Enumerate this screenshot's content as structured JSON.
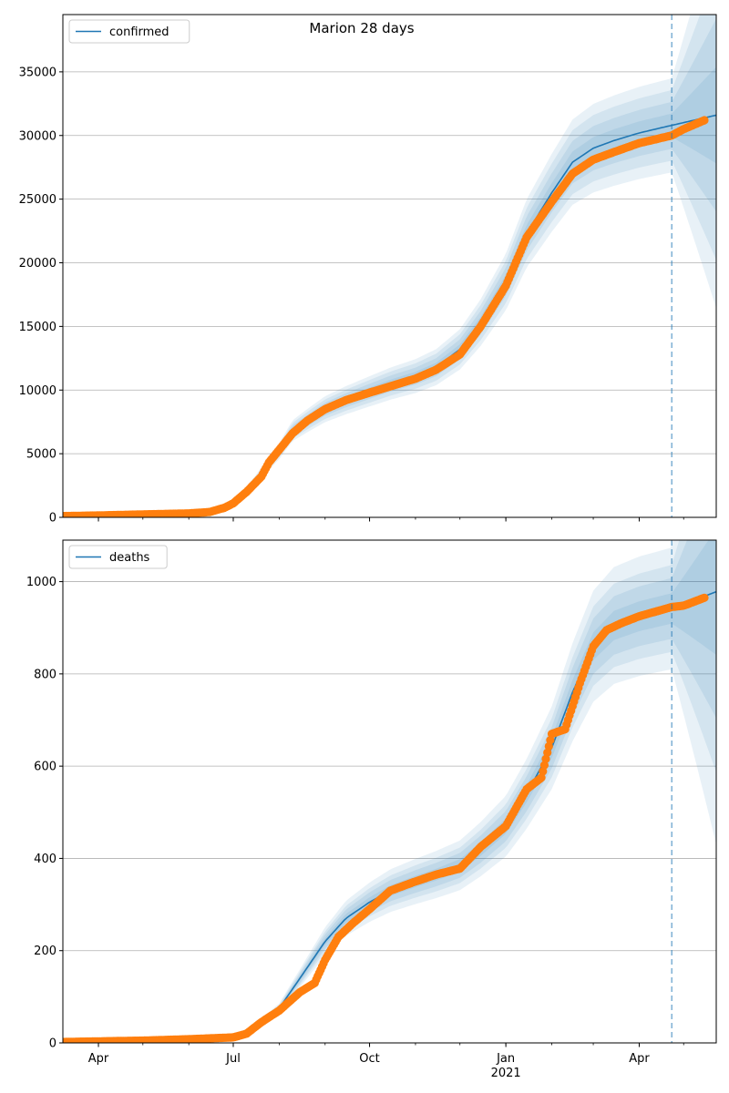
{
  "figure": {
    "title": "Marion 28 days",
    "band_color": "#1f77b4",
    "line_color": "#1f77b4",
    "dot_color": "#ff7f0e",
    "forecast_date": "2021-04-23"
  },
  "chart_data": [
    {
      "type": "line",
      "legend": "confirmed",
      "legend_position": "upper-left",
      "grid": "y",
      "xlim": [
        "2020-03-08",
        "2021-05-23"
      ],
      "ylim": [
        0,
        39500
      ],
      "yticks": [
        0,
        5000,
        10000,
        15000,
        20000,
        25000,
        30000,
        35000
      ],
      "xticks": [
        {
          "date": "2020-04-01",
          "label": "Apr",
          "sub": ""
        },
        {
          "date": "2020-07-01",
          "label": "Jul",
          "sub": ""
        },
        {
          "date": "2020-10-01",
          "label": "Oct",
          "sub": ""
        },
        {
          "date": "2021-01-01",
          "label": "Jan",
          "sub": "2021"
        },
        {
          "date": "2021-04-01",
          "label": "Apr",
          "sub": ""
        }
      ],
      "model": [
        [
          "2020-03-08",
          100
        ],
        [
          "2020-06-01",
          300
        ],
        [
          "2020-06-15",
          500
        ],
        [
          "2020-07-01",
          1100
        ],
        [
          "2020-07-15",
          2800
        ],
        [
          "2020-08-01",
          5200
        ],
        [
          "2020-08-10",
          6800
        ],
        [
          "2020-08-20",
          7600
        ],
        [
          "2020-09-01",
          8500
        ],
        [
          "2020-09-15",
          9200
        ],
        [
          "2020-10-01",
          9900
        ],
        [
          "2020-10-15",
          10500
        ],
        [
          "2020-11-01",
          11100
        ],
        [
          "2020-11-15",
          11800
        ],
        [
          "2020-12-01",
          13200
        ],
        [
          "2020-12-15",
          15300
        ],
        [
          "2021-01-01",
          18500
        ],
        [
          "2021-01-15",
          22300
        ],
        [
          "2021-02-01",
          25500
        ],
        [
          "2021-02-15",
          27900
        ],
        [
          "2021-03-01",
          29000
        ],
        [
          "2021-03-15",
          29600
        ],
        [
          "2021-04-01",
          30200
        ],
        [
          "2021-04-23",
          30800
        ],
        [
          "2021-05-23",
          31600
        ]
      ],
      "band_widths": [
        0.03,
        0.06,
        0.09,
        0.12
      ],
      "observed": [
        [
          "2020-03-08",
          100
        ],
        [
          "2020-04-01",
          150
        ],
        [
          "2020-05-01",
          230
        ],
        [
          "2020-06-01",
          310
        ],
        [
          "2020-06-15",
          420
        ],
        [
          "2020-06-25",
          750
        ],
        [
          "2020-07-01",
          1100
        ],
        [
          "2020-07-10",
          2000
        ],
        [
          "2020-07-20",
          3200
        ],
        [
          "2020-07-25",
          4300
        ],
        [
          "2020-08-01",
          5300
        ],
        [
          "2020-08-10",
          6600
        ],
        [
          "2020-08-20",
          7600
        ],
        [
          "2020-09-01",
          8500
        ],
        [
          "2020-09-15",
          9200
        ],
        [
          "2020-10-01",
          9800
        ],
        [
          "2020-10-15",
          10300
        ],
        [
          "2020-11-01",
          10900
        ],
        [
          "2020-11-15",
          11600
        ],
        [
          "2020-12-01",
          12800
        ],
        [
          "2020-12-15",
          15000
        ],
        [
          "2021-01-01",
          18200
        ],
        [
          "2021-01-15",
          22000
        ],
        [
          "2021-02-01",
          24800
        ],
        [
          "2021-02-15",
          27000
        ],
        [
          "2021-03-01",
          28100
        ],
        [
          "2021-03-15",
          28700
        ],
        [
          "2021-04-01",
          29400
        ],
        [
          "2021-04-23",
          30000
        ],
        [
          "2021-05-01",
          30500
        ],
        [
          "2021-05-15",
          31200
        ]
      ]
    },
    {
      "type": "line",
      "legend": "deaths",
      "legend_position": "upper-left",
      "grid": "y",
      "xlim": [
        "2020-03-08",
        "2021-05-23"
      ],
      "ylim": [
        0,
        1090
      ],
      "yticks": [
        0,
        200,
        400,
        600,
        800,
        1000
      ],
      "xticks": [
        {
          "date": "2020-04-01",
          "label": "Apr",
          "sub": ""
        },
        {
          "date": "2020-07-01",
          "label": "Jul",
          "sub": ""
        },
        {
          "date": "2020-10-01",
          "label": "Oct",
          "sub": ""
        },
        {
          "date": "2021-01-01",
          "label": "Jan",
          "sub": "2021"
        },
        {
          "date": "2021-04-01",
          "label": "Apr",
          "sub": ""
        }
      ],
      "model": [
        [
          "2020-03-08",
          2
        ],
        [
          "2020-06-01",
          8
        ],
        [
          "2020-07-01",
          14
        ],
        [
          "2020-07-15",
          35
        ],
        [
          "2020-08-01",
          75
        ],
        [
          "2020-08-15",
          140
        ],
        [
          "2020-09-01",
          220
        ],
        [
          "2020-09-15",
          270
        ],
        [
          "2020-10-01",
          305
        ],
        [
          "2020-10-15",
          330
        ],
        [
          "2020-11-01",
          350
        ],
        [
          "2020-11-15",
          365
        ],
        [
          "2020-12-01",
          385
        ],
        [
          "2020-12-15",
          420
        ],
        [
          "2021-01-01",
          470
        ],
        [
          "2021-01-15",
          540
        ],
        [
          "2021-02-01",
          640
        ],
        [
          "2021-02-15",
          760
        ],
        [
          "2021-03-01",
          860
        ],
        [
          "2021-03-15",
          905
        ],
        [
          "2021-04-01",
          925
        ],
        [
          "2021-04-23",
          942
        ],
        [
          "2021-05-23",
          978
        ]
      ],
      "band_widths": [
        0.035,
        0.07,
        0.1,
        0.14
      ],
      "observed": [
        [
          "2020-03-08",
          2
        ],
        [
          "2020-05-01",
          5
        ],
        [
          "2020-06-01",
          8
        ],
        [
          "2020-07-01",
          12
        ],
        [
          "2020-07-10",
          20
        ],
        [
          "2020-07-20",
          45
        ],
        [
          "2020-08-01",
          70
        ],
        [
          "2020-08-15",
          110
        ],
        [
          "2020-08-25",
          130
        ],
        [
          "2020-09-01",
          180
        ],
        [
          "2020-09-10",
          230
        ],
        [
          "2020-09-20",
          260
        ],
        [
          "2020-10-01",
          290
        ],
        [
          "2020-10-15",
          330
        ],
        [
          "2020-11-01",
          350
        ],
        [
          "2020-11-15",
          365
        ],
        [
          "2020-12-01",
          378
        ],
        [
          "2020-12-15",
          425
        ],
        [
          "2021-01-01",
          470
        ],
        [
          "2021-01-15",
          550
        ],
        [
          "2021-01-25",
          575
        ],
        [
          "2021-02-01",
          670
        ],
        [
          "2021-02-10",
          680
        ],
        [
          "2021-02-20",
          780
        ],
        [
          "2021-03-01",
          860
        ],
        [
          "2021-03-10",
          895
        ],
        [
          "2021-03-20",
          910
        ],
        [
          "2021-04-01",
          925
        ],
        [
          "2021-04-23",
          945
        ],
        [
          "2021-05-01",
          948
        ],
        [
          "2021-05-15",
          965
        ]
      ]
    }
  ]
}
